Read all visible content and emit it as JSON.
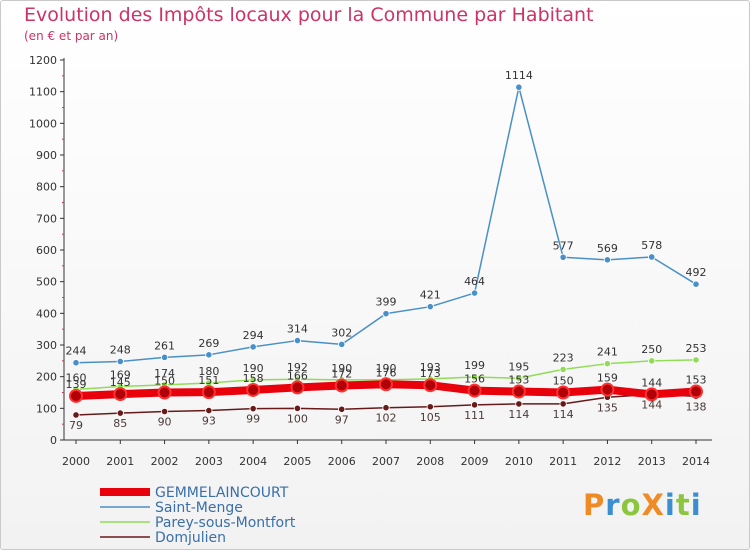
{
  "title": "Evolution des Impôts locaux pour la Commune par Habitant",
  "subtitle": "(en € et par an)",
  "logo": {
    "text": "ProXiti",
    "letters": [
      {
        "ch": "P",
        "color": "#f08a24"
      },
      {
        "ch": "r",
        "color": "#3b8fd0"
      },
      {
        "ch": "o",
        "color": "#8cc63f"
      },
      {
        "ch": "X",
        "color": "#f08a24"
      },
      {
        "ch": "i",
        "color": "#3b8fd0"
      },
      {
        "ch": "t",
        "color": "#8cc63f"
      },
      {
        "ch": "i",
        "color": "#3b8fd0"
      }
    ]
  },
  "chart_data": {
    "type": "line",
    "x": [
      "2000",
      "2001",
      "2002",
      "2003",
      "2004",
      "2005",
      "2006",
      "2007",
      "2008",
      "2009",
      "2010",
      "2011",
      "2012",
      "2013",
      "2014"
    ],
    "ylim": [
      0,
      1200
    ],
    "yticks": [
      0,
      100,
      200,
      300,
      400,
      500,
      600,
      700,
      800,
      900,
      1000,
      1100,
      1200
    ],
    "grid": false,
    "legend_position": "bottom-left",
    "series": [
      {
        "name": "GEMMELAINCOURT",
        "color": "#e8000b",
        "width": 8,
        "values": [
          139,
          145,
          150,
          151,
          158,
          166,
          172,
          176,
          173,
          156,
          153,
          150,
          159,
          144,
          153
        ]
      },
      {
        "name": "Saint-Menge",
        "color": "#4a90c8",
        "width": 1.5,
        "values": [
          244,
          248,
          261,
          269,
          294,
          314,
          302,
          399,
          421,
          464,
          1114,
          577,
          569,
          578,
          492
        ]
      },
      {
        "name": "Parey-sous-Montfort",
        "color": "#90dd55",
        "width": 1.5,
        "values": [
          160,
          169,
          174,
          180,
          190,
          192,
          190,
          190,
          193,
          199,
          195,
          223,
          241,
          250,
          253
        ]
      },
      {
        "name": "Domjulien",
        "color": "#661a1a",
        "width": 1.5,
        "values": [
          79,
          85,
          90,
          93,
          99,
          100,
          97,
          102,
          105,
          111,
          114,
          114,
          135,
          144,
          138
        ]
      }
    ]
  }
}
